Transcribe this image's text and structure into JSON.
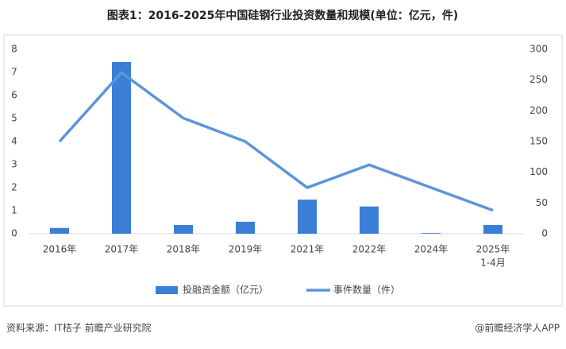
{
  "chart_data": {
    "type": "bar-line",
    "title": "图表1：2016-2025年中国硅钢行业投资数量和规模(单位：亿元，件)",
    "categories": [
      "2016年",
      "2017年",
      "2018年",
      "2019年",
      "2021年",
      "2022年",
      "2024年",
      [
        "2025年",
        "1-4月"
      ]
    ],
    "series": [
      {
        "name": "投融资金额（亿元）",
        "type": "bar",
        "color": "#3a7fd5",
        "values": [
          0.25,
          7.45,
          0.38,
          0.52,
          1.48,
          1.18,
          0.03,
          0.38
        ]
      },
      {
        "name": "事件数量（件）",
        "type": "line",
        "axis": "y2",
        "color": "#5b95d9",
        "values": [
          150,
          262,
          188,
          150,
          75,
          112,
          75,
          38
        ]
      }
    ],
    "ylim": [
      0,
      8
    ],
    "yticks": [
      0,
      1,
      2,
      3,
      4,
      5,
      6,
      7,
      8
    ],
    "y2lim": [
      0,
      300
    ],
    "y2ticks": [
      0,
      50,
      100,
      150,
      200,
      250,
      300
    ],
    "grid": false,
    "legend": "bottom",
    "source": "资料来源：IT桔子 前瞻产业研究院",
    "credit": "@前瞻经济学人APP"
  }
}
